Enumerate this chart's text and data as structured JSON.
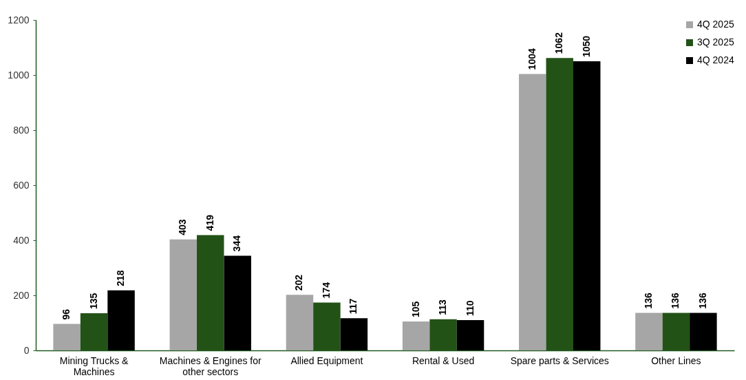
{
  "chart_data": {
    "type": "bar",
    "categories": [
      "Mining Trucks & Machines",
      "Machines & Engines for other sectors",
      "Allied Equipment",
      "Rental & Used",
      "Spare parts & Services",
      "Other Lines"
    ],
    "series": [
      {
        "name": "4Q 2025",
        "color": "#a6a6a6",
        "values": [
          96,
          403,
          202,
          105,
          1004,
          136
        ]
      },
      {
        "name": "3Q 2025",
        "color": "#235217",
        "values": [
          135,
          419,
          174,
          113,
          1062,
          136
        ]
      },
      {
        "name": "4Q 2024",
        "color": "#000000",
        "values": [
          218,
          344,
          117,
          110,
          1050,
          136
        ]
      }
    ],
    "ylim": [
      0,
      1200
    ],
    "yticks": [
      0,
      200,
      400,
      600,
      800,
      1000,
      1200
    ],
    "grid": false,
    "legend": "top right",
    "data_labels": true
  }
}
